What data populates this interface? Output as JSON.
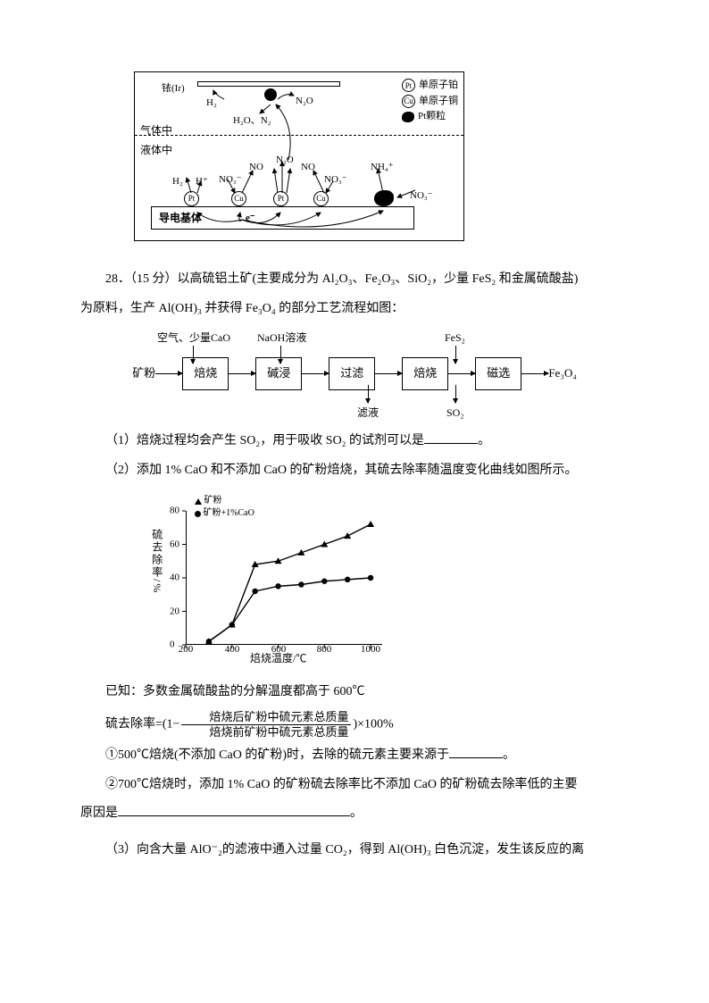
{
  "diagram1": {
    "ir_label": "铱(Ir)",
    "gas_phase": "气体中",
    "liquid_phase": "液体中",
    "substrate": "导电基体",
    "legend": {
      "pt": "单原子铂",
      "cu": "单原子铜",
      "ptp": "Pt颗粒"
    },
    "species": {
      "H2": "H₂",
      "N2O": "N₂O",
      "H2O_N2": "H₂O、N₂",
      "Hplus": "H⁺",
      "NO3m": "NO₃⁻",
      "NO": "NO",
      "NH4p": "NH₄⁺",
      "e": "e⁻"
    },
    "catalysts": {
      "Pt": "Pt",
      "Cu": "Cu"
    }
  },
  "question": {
    "num": "28．",
    "points": "（15 分）",
    "stem_a": "以高硫铝土矿(主要成分为 Al₂O₃、Fe₂O₃、SiO₂，少量 FeS₂ 和金属硫酸盐)",
    "stem_b": "为原料，生产 Al(OH)₃ 并获得 Fe₃O₄ 的部分工艺流程如图："
  },
  "flowchart": {
    "input": "矿粉",
    "steps": [
      "焙烧",
      "碱浸",
      "过滤",
      "焙烧",
      "磁选"
    ],
    "top_labels": [
      "空气、少量CaO",
      "NaOH溶液",
      "FeS₂"
    ],
    "bottom_labels": [
      "滤液",
      "SO₂"
    ],
    "output": "Fe₃O₄",
    "colors": {
      "box_border": "#000000",
      "arrow": "#000000"
    }
  },
  "q1": "（1）焙烧过程均会产生 SO₂，用于吸收 SO₂ 的试剂可以是",
  "q2": "（2）添加 1% CaO 和不添加 CaO 的矿粉焙烧，其硫去除率随温度变化曲线如图所示。",
  "chart": {
    "type": "line",
    "ylabel": "硫去除率/%",
    "xlabel": "焙烧温度/℃",
    "ylim": [
      0,
      80
    ],
    "ytick_step": 20,
    "xlim": [
      200,
      1050
    ],
    "xticks": [
      200,
      400,
      600,
      800,
      1000
    ],
    "legend": [
      "矿粉",
      "矿粉+1%CaO"
    ],
    "series1": {
      "marker": "triangle",
      "color": "#000000",
      "x": [
        300,
        400,
        500,
        600,
        700,
        800,
        900,
        1000
      ],
      "y": [
        2,
        12,
        48,
        50,
        55,
        60,
        65,
        72
      ]
    },
    "series2": {
      "marker": "circle",
      "color": "#000000",
      "x": [
        300,
        400,
        500,
        600,
        700,
        800,
        900,
        1000
      ],
      "y": [
        2,
        12,
        32,
        35,
        36,
        38,
        39,
        40
      ]
    },
    "line_width": 1.4,
    "background_color": "#ffffff"
  },
  "known": "已知：多数金属硫酸盐的分解温度都高于 600℃",
  "formula": {
    "lhs": "硫去除率=(1−",
    "num": "焙烧后矿粉中硫元素总质量",
    "den": "焙烧前矿粉中硫元素总质量",
    "rhs": ")×100%"
  },
  "q2_1": "①500℃焙烧(不添加 CaO 的矿粉)时，去除的硫元素主要来源于",
  "q2_2a": "②700℃焙烧时，添加 1% CaO 的矿粉硫去除率比不添加 CaO 的矿粉硫去除率低的主要",
  "q2_2b": "原因是",
  "q3": "（3）向含大量 AlO⁻₂的滤液中通入过量 CO₂，得到 Al(OH)₃ 白色沉淀，发生该反应的离",
  "period": "。"
}
